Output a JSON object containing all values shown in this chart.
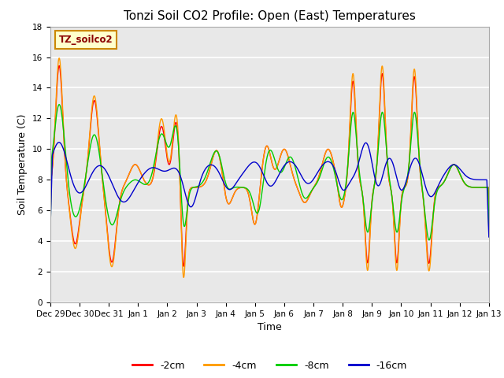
{
  "title": "Tonzi Soil CO2 Profile: Open (East) Temperatures",
  "xlabel": "Time",
  "ylabel": "Soil Temperature (C)",
  "ylim": [
    0,
    18
  ],
  "legend_label": "TZ_soilco2",
  "series_labels": [
    "-2cm",
    "-4cm",
    "-8cm",
    "-16cm"
  ],
  "series_colors": [
    "#ff0000",
    "#ff9900",
    "#00cc00",
    "#0000cc"
  ],
  "plot_bg_color": "#e8e8e8",
  "x_tick_labels": [
    "Dec 29",
    "Dec 30",
    "Dec 31",
    "Jan 1",
    "Jan 2",
    "Jan 3",
    "Jan 4",
    "Jan 5",
    "Jan 6",
    "Jan 7",
    "Jan 8",
    "Jan 9",
    "Jan 10",
    "Jan 11",
    "Jan 12",
    "Jan 13"
  ],
  "x_tick_positions": [
    0,
    1,
    2,
    3,
    4,
    5,
    6,
    7,
    8,
    9,
    10,
    11,
    12,
    13,
    14,
    15
  ],
  "title_fontsize": 11,
  "axis_fontsize": 9,
  "tick_fontsize": 7.5,
  "legend_box_color": "#ffffcc",
  "legend_box_edge": "#cc8800",
  "yticks": [
    0,
    2,
    4,
    6,
    8,
    10,
    12,
    14,
    16,
    18
  ],
  "figsize": [
    6.4,
    4.8
  ],
  "dpi": 100
}
